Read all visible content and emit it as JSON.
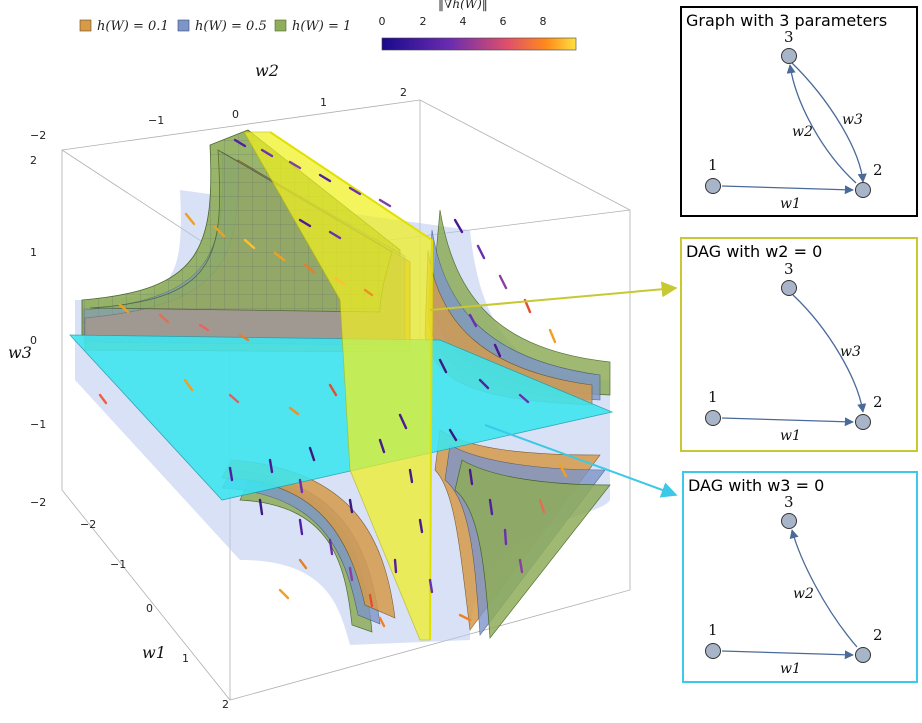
{
  "legend": {
    "items": [
      {
        "label": "h(W) = 0.1",
        "color": "#d69b4a"
      },
      {
        "label": "h(W) = 0.5",
        "color": "#7d95c9"
      },
      {
        "label": "h(W) = 1",
        "color": "#8fad5a"
      }
    ]
  },
  "colorbar": {
    "title": "‖∇h(W)‖",
    "ticks": [
      "0",
      "2",
      "4",
      "6",
      "8"
    ]
  },
  "plot3d": {
    "axis_w1": "w1",
    "axis_w2": "w2",
    "axis_w3": "w3",
    "w2_ticks": [
      "−2",
      "−1",
      "0",
      "1",
      "2"
    ],
    "w3_ticks": [
      "2",
      "1",
      "0",
      "−1",
      "−2"
    ],
    "w1_ticks": [
      "−2",
      "−1",
      "0",
      "1",
      "2"
    ]
  },
  "panels": [
    {
      "title": "Graph with 3 parameters",
      "border": "#000000",
      "nodes": [
        "1",
        "2",
        "3"
      ],
      "edges": [
        "w1",
        "w2",
        "w3"
      ]
    },
    {
      "title": "DAG with w2 = 0",
      "border": "#c8c832",
      "nodes": [
        "1",
        "2",
        "3"
      ],
      "edges": [
        "w1",
        "w3"
      ]
    },
    {
      "title": "DAG with w3 = 0",
      "border": "#3cc8e6",
      "nodes": [
        "1",
        "2",
        "3"
      ],
      "edges": [
        "w1",
        "w2"
      ]
    }
  ]
}
